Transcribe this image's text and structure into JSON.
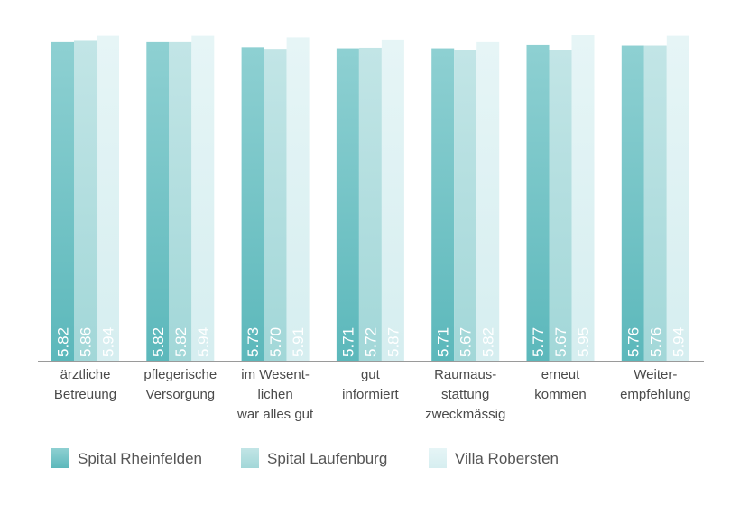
{
  "chart_data": {
    "type": "bar",
    "categories": [
      [
        "ärztliche",
        "Betreuung"
      ],
      [
        "pflegerische",
        "Versorgung"
      ],
      [
        "im Wesent-",
        "lichen",
        "war alles gut"
      ],
      [
        "gut",
        "informiert"
      ],
      [
        "Raumaus-",
        "stattung",
        "zweckmässig"
      ],
      [
        "erneut",
        "kommen"
      ],
      [
        "Weiter-",
        "empfehlung"
      ]
    ],
    "series": [
      {
        "name": "Spital Rheinfelden",
        "color": "#5cb8bb",
        "color_light": "#8ed0d2",
        "values": [
          5.82,
          5.82,
          5.73,
          5.71,
          5.71,
          5.77,
          5.76
        ],
        "labels": [
          "5.82",
          "5.82",
          "5.73",
          "5.71",
          "5.71",
          "5.77",
          "5.76"
        ]
      },
      {
        "name": "Spital Laufenburg",
        "color": "#a2d7d8",
        "color_light": "#c2e5e6",
        "values": [
          5.86,
          5.82,
          5.7,
          5.72,
          5.67,
          5.67,
          5.76
        ],
        "labels": [
          "5.86",
          "5.82",
          "5.70",
          "5.72",
          "5.67",
          "5.67",
          "5.76"
        ]
      },
      {
        "name": "Villa Robersten",
        "color": "#d6eef0",
        "color_light": "#e6f5f6",
        "values": [
          5.94,
          5.94,
          5.91,
          5.87,
          5.82,
          5.95,
          5.94
        ],
        "labels": [
          "5.94",
          "5.94",
          "5.91",
          "5.87",
          "5.82",
          "5.95",
          "5.94"
        ]
      }
    ],
    "ylim": [
      0,
      6
    ],
    "legend_position": "bottom-left",
    "grid": false,
    "baseline_color": "#9a9a9a"
  }
}
